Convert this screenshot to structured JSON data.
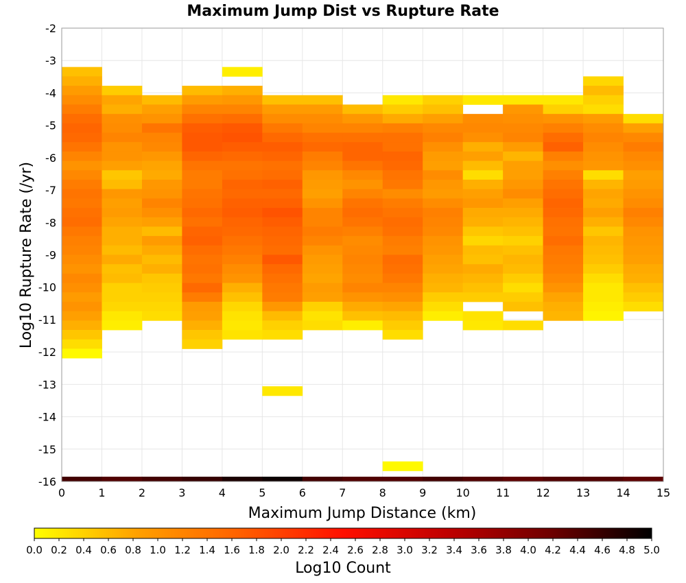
{
  "chart_data": {
    "type": "heatmap",
    "title": "Maximum Jump Dist vs Rupture Rate",
    "xlabel": "Maximum Jump Distance (km)",
    "ylabel": "Log10 Rupture Rate (/yr)",
    "colorbar_label": "Log10 Count",
    "xlim": [
      0,
      15
    ],
    "ylim": [
      -16,
      -2
    ],
    "x_ticks": [
      "0",
      "1",
      "2",
      "3",
      "4",
      "5",
      "6",
      "7",
      "8",
      "9",
      "10",
      "11",
      "12",
      "13",
      "14",
      "15"
    ],
    "y_ticks": [
      "-2",
      "-3",
      "-4",
      "-5",
      "-6",
      "-7",
      "-8",
      "-9",
      "-10",
      "-11",
      "-12",
      "-13",
      "-14",
      "-15",
      "-16"
    ],
    "colorbar_ticks": [
      "0.0",
      "0.2",
      "0.4",
      "0.6",
      "0.8",
      "1.0",
      "1.2",
      "1.4",
      "1.6",
      "1.8",
      "2.0",
      "2.2",
      "2.4",
      "2.6",
      "2.8",
      "3.0",
      "3.2",
      "3.4",
      "3.6",
      "3.8",
      "4.0",
      "4.2",
      "4.4",
      "4.6",
      "4.8",
      "5.0"
    ],
    "colorscale": {
      "min": 0,
      "max": 5,
      "colors": [
        "#ffff00",
        "#ffa000",
        "#ff6000",
        "#ff1000",
        "#c00000",
        "#700000",
        "#000000"
      ]
    },
    "grid": true,
    "x_bin_edges": [
      0,
      1,
      2,
      3,
      4,
      5,
      6,
      7,
      8,
      9,
      10,
      11,
      12,
      13,
      14,
      15
    ],
    "y_bin_top": -3.2,
    "y_bin_size": 0.29,
    "columns": [
      {
        "x0": 0,
        "x1": 1,
        "y_start_bin": 0,
        "values": [
          0.55,
          0.7,
          0.9,
          1.1,
          1.3,
          1.5,
          1.6,
          1.55,
          1.4,
          1.2,
          1.0,
          1.15,
          1.3,
          1.4,
          1.35,
          1.45,
          1.5,
          1.35,
          1.25,
          1.2,
          1.1,
          1.0,
          1.15,
          1.05,
          0.9,
          1.0,
          0.85,
          0.7,
          0.5,
          0.3,
          0.05
        ]
      },
      {
        "x0": 1,
        "x1": 2,
        "y_start_bin": 2,
        "values": [
          0.45,
          0.8,
          0.7,
          1.05,
          1.1,
          1.2,
          1.0,
          1.0,
          0.85,
          0.5,
          0.6,
          0.95,
          0.85,
          0.9,
          0.8,
          0.7,
          0.7,
          0.6,
          0.75,
          0.55,
          0.6,
          0.4,
          0.4,
          0.35,
          0.2,
          0.15
        ]
      },
      {
        "x0": 2,
        "x1": 3,
        "y_start_bin": 3,
        "values": [
          0.6,
          0.85,
          1.0,
          1.4,
          1.2,
          1.15,
          0.95,
          0.8,
          0.75,
          0.95,
          1.0,
          1.2,
          1.05,
          0.85,
          0.6,
          0.9,
          0.75,
          0.6,
          0.7,
          0.5,
          0.45,
          0.4,
          0.35,
          0.3
        ]
      },
      {
        "x0": 3,
        "x1": 4,
        "y_start_bin": 2,
        "values": [
          0.6,
          0.9,
          1.2,
          1.45,
          1.7,
          1.75,
          1.75,
          1.6,
          1.4,
          1.3,
          1.3,
          1.4,
          1.45,
          1.55,
          1.45,
          1.6,
          1.65,
          1.5,
          1.4,
          1.45,
          1.35,
          1.55,
          1.3,
          0.9,
          0.85,
          0.7,
          0.5,
          0.4
        ]
      },
      {
        "x0": 4,
        "x1": 5,
        "y_start_bin": 0,
        "gaps": [
          1
        ],
        "values": [
          0.15,
          0,
          0.7,
          0.95,
          1.2,
          1.5,
          1.75,
          1.8,
          1.7,
          1.55,
          1.4,
          1.45,
          1.6,
          1.55,
          1.65,
          1.7,
          1.6,
          1.55,
          1.45,
          1.35,
          1.25,
          1.1,
          1.0,
          0.7,
          0.55,
          0.35,
          0.25,
          0.2,
          0.25
        ]
      },
      {
        "x0": 5,
        "x1": 6,
        "y_start_bin": 3,
        "gaps": [
          26,
          27,
          28,
          29,
          30
        ],
        "values": [
          0.55,
          0.9,
          1.1,
          1.35,
          1.55,
          1.7,
          1.6,
          1.45,
          1.5,
          1.65,
          1.55,
          1.65,
          1.8,
          1.7,
          1.6,
          1.55,
          1.5,
          1.75,
          1.55,
          1.45,
          1.35,
          1.3,
          0.95,
          0.6,
          0.4,
          0.3,
          0,
          0,
          0,
          0,
          0,
          0.2
        ]
      },
      {
        "x0": 6,
        "x1": 7,
        "y_start_bin": 3,
        "values": [
          0.55,
          0.9,
          1.1,
          1.2,
          1.45,
          1.55,
          1.3,
          1.2,
          0.95,
          0.9,
          0.85,
          1.0,
          1.2,
          1.2,
          1.3,
          1.2,
          1.0,
          0.9,
          0.85,
          0.8,
          0.9,
          0.85,
          0.4,
          0.25,
          0.3
        ]
      },
      {
        "x0": 7,
        "x1": 8,
        "y_start_bin": 4,
        "values": [
          0.6,
          0.95,
          1.2,
          1.45,
          1.6,
          1.6,
          1.4,
          1.15,
          1.0,
          1.2,
          1.4,
          1.5,
          1.4,
          1.25,
          1.1,
          1.15,
          1.2,
          1.15,
          1.1,
          1.2,
          1.0,
          0.75,
          0.55,
          0.15
        ]
      },
      {
        "x0": 8,
        "x1": 9,
        "y_start_bin": 3,
        "gaps": [
          26,
          27,
          28,
          29,
          30,
          31,
          32,
          33,
          34,
          35,
          36,
          37,
          38
        ],
        "values": [
          0.2,
          0.45,
          0.75,
          1.25,
          1.45,
          1.45,
          1.6,
          1.55,
          1.4,
          1.35,
          1.1,
          1.3,
          1.4,
          1.5,
          1.45,
          1.3,
          1.25,
          1.5,
          1.45,
          1.35,
          1.2,
          1.05,
          0.8,
          0.6,
          0.45,
          0.3,
          0,
          0,
          0.05,
          0,
          0,
          0,
          0,
          0,
          0,
          0,
          0,
          0,
          0,
          0.05
        ]
      },
      {
        "x0": 9,
        "x1": 10,
        "y_start_bin": 3,
        "values": [
          0.4,
          0.55,
          0.85,
          1.15,
          1.25,
          1.05,
          0.9,
          0.85,
          1.1,
          0.95,
          0.9,
          1.1,
          1.25,
          1.2,
          1.15,
          1.0,
          0.95,
          0.85,
          0.8,
          0.7,
          0.65,
          0.45,
          0.3,
          0.15
        ]
      },
      {
        "x0": 10,
        "x1": 11,
        "y_start_bin": 3,
        "gaps": [
          1,
          22
        ],
        "values": [
          0.2,
          0,
          1.1,
          1.15,
          1.05,
          0.7,
          0.85,
          0.6,
          0.3,
          0.7,
          0.85,
          0.95,
          0.75,
          0.7,
          0.5,
          0.35,
          0.6,
          0.55,
          0.75,
          0.65,
          0.55,
          0.45,
          0,
          0.25,
          0.2
        ]
      },
      {
        "x0": 11,
        "x1": 12,
        "y_start_bin": 3,
        "gaps": [
          23
        ],
        "values": [
          0.2,
          0.95,
          1.05,
          1.15,
          1.2,
          0.9,
          0.65,
          0.85,
          0.85,
          0.95,
          1.1,
          0.85,
          0.75,
          0.65,
          0.55,
          0.4,
          0.55,
          0.65,
          0.6,
          0.45,
          0.3,
          0.45,
          0.55,
          0,
          0.3
        ]
      },
      {
        "x0": 12,
        "x1": 13,
        "y_start_bin": 3,
        "values": [
          0.2,
          0.4,
          1.0,
          1.25,
          1.5,
          1.65,
          1.25,
          1.05,
          1.25,
          1.4,
          1.5,
          1.6,
          1.55,
          1.45,
          1.4,
          1.5,
          1.35,
          1.3,
          1.25,
          1.15,
          1.0,
          0.8,
          0.7,
          0.65
        ]
      },
      {
        "x0": 13,
        "x1": 14,
        "y_start_bin": 1,
        "values": [
          0.35,
          0.6,
          0.4,
          0.3,
          0.9,
          1.1,
          1.2,
          1.1,
          1.0,
          0.95,
          0.3,
          0.65,
          0.8,
          0.75,
          0.85,
          0.7,
          0.5,
          0.65,
          0.6,
          0.55,
          0.45,
          0.3,
          0.2,
          0.2,
          0.15,
          0.1
        ]
      },
      {
        "x0": 14,
        "x1": 15,
        "y_start_bin": 5,
        "values": [
          0.3,
          0.85,
          1.15,
          1.3,
          1.15,
          1.05,
          0.85,
          0.9,
          1.0,
          1.1,
          1.25,
          1.15,
          1.0,
          0.95,
          0.9,
          0.85,
          0.75,
          0.7,
          0.55,
          0.45,
          0.3
        ]
      }
    ],
    "bottom_strip": {
      "y": -16,
      "values": [
        4.5,
        4.4,
        4.5,
        4.6,
        4.8,
        4.9,
        4.5,
        4.4,
        4.4,
        4.5,
        4.4,
        4.3,
        4.4,
        4.4,
        4.3
      ]
    }
  }
}
